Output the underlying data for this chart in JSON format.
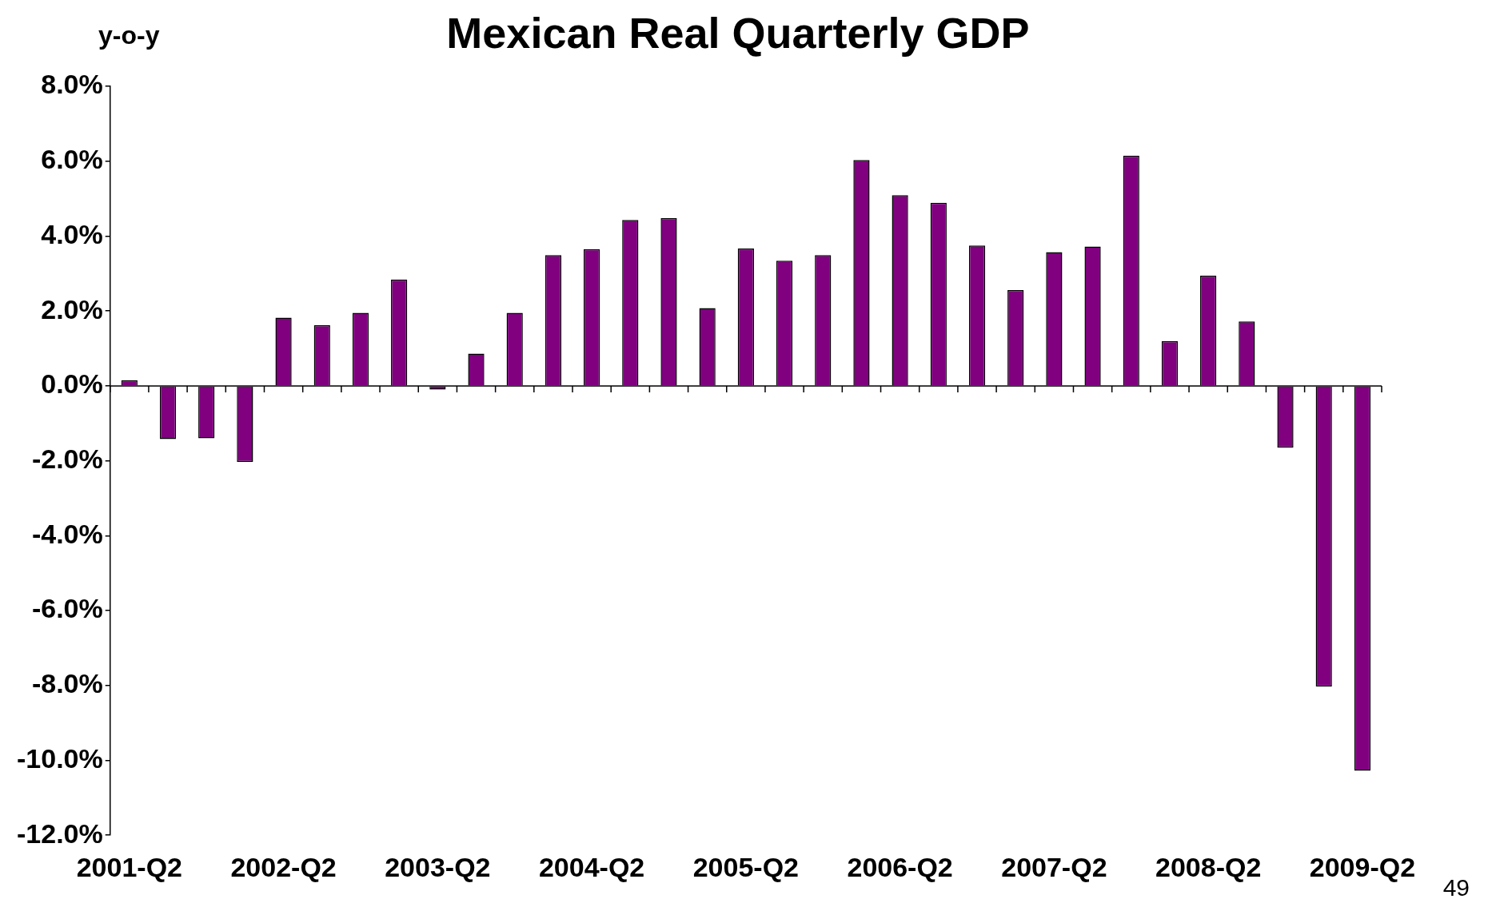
{
  "chart_data": {
    "type": "bar",
    "title": "Mexican Real Quarterly GDP",
    "ylabel": "y-o-y",
    "annotations": [
      "49"
    ],
    "categories": [
      "2001-Q2",
      null,
      null,
      null,
      "2002-Q2",
      null,
      null,
      null,
      "2003-Q2",
      null,
      null,
      null,
      "2004-Q2",
      null,
      null,
      null,
      "2005-Q2",
      null,
      null,
      null,
      "2006-Q2",
      null,
      null,
      null,
      "2007-Q2",
      null,
      null,
      null,
      "2008-Q2",
      null,
      null,
      null,
      "2009-Q2"
    ],
    "values": [
      0.15,
      -1.42,
      -1.4,
      -2.03,
      1.82,
      1.62,
      1.95,
      2.84,
      -0.1,
      0.86,
      1.95,
      3.49,
      3.65,
      4.43,
      4.48,
      2.08,
      3.67,
      3.34,
      3.49,
      6.03,
      5.09,
      4.89,
      3.75,
      2.56,
      3.57,
      3.72,
      6.15,
      1.19,
      2.94,
      1.72,
      -1.65,
      -8.03,
      -10.28
    ],
    "color": "#800080",
    "ylim": [
      -12,
      8
    ],
    "yticks": [
      {
        "value": -12,
        "label": "-12.0%"
      },
      {
        "value": -10,
        "label": "-10.0%"
      },
      {
        "value": -8,
        "label": "-8.0%"
      },
      {
        "value": -6,
        "label": "-6.0%"
      },
      {
        "value": -4,
        "label": "-4.0%"
      },
      {
        "value": -2,
        "label": "-2.0%"
      },
      {
        "value": 0,
        "label": "0.0%"
      },
      {
        "value": 2,
        "label": "2.0%"
      },
      {
        "value": 4,
        "label": "4.0%"
      },
      {
        "value": 6,
        "label": "6.0%"
      },
      {
        "value": 8,
        "label": "8.0%"
      }
    ],
    "legend": false
  }
}
